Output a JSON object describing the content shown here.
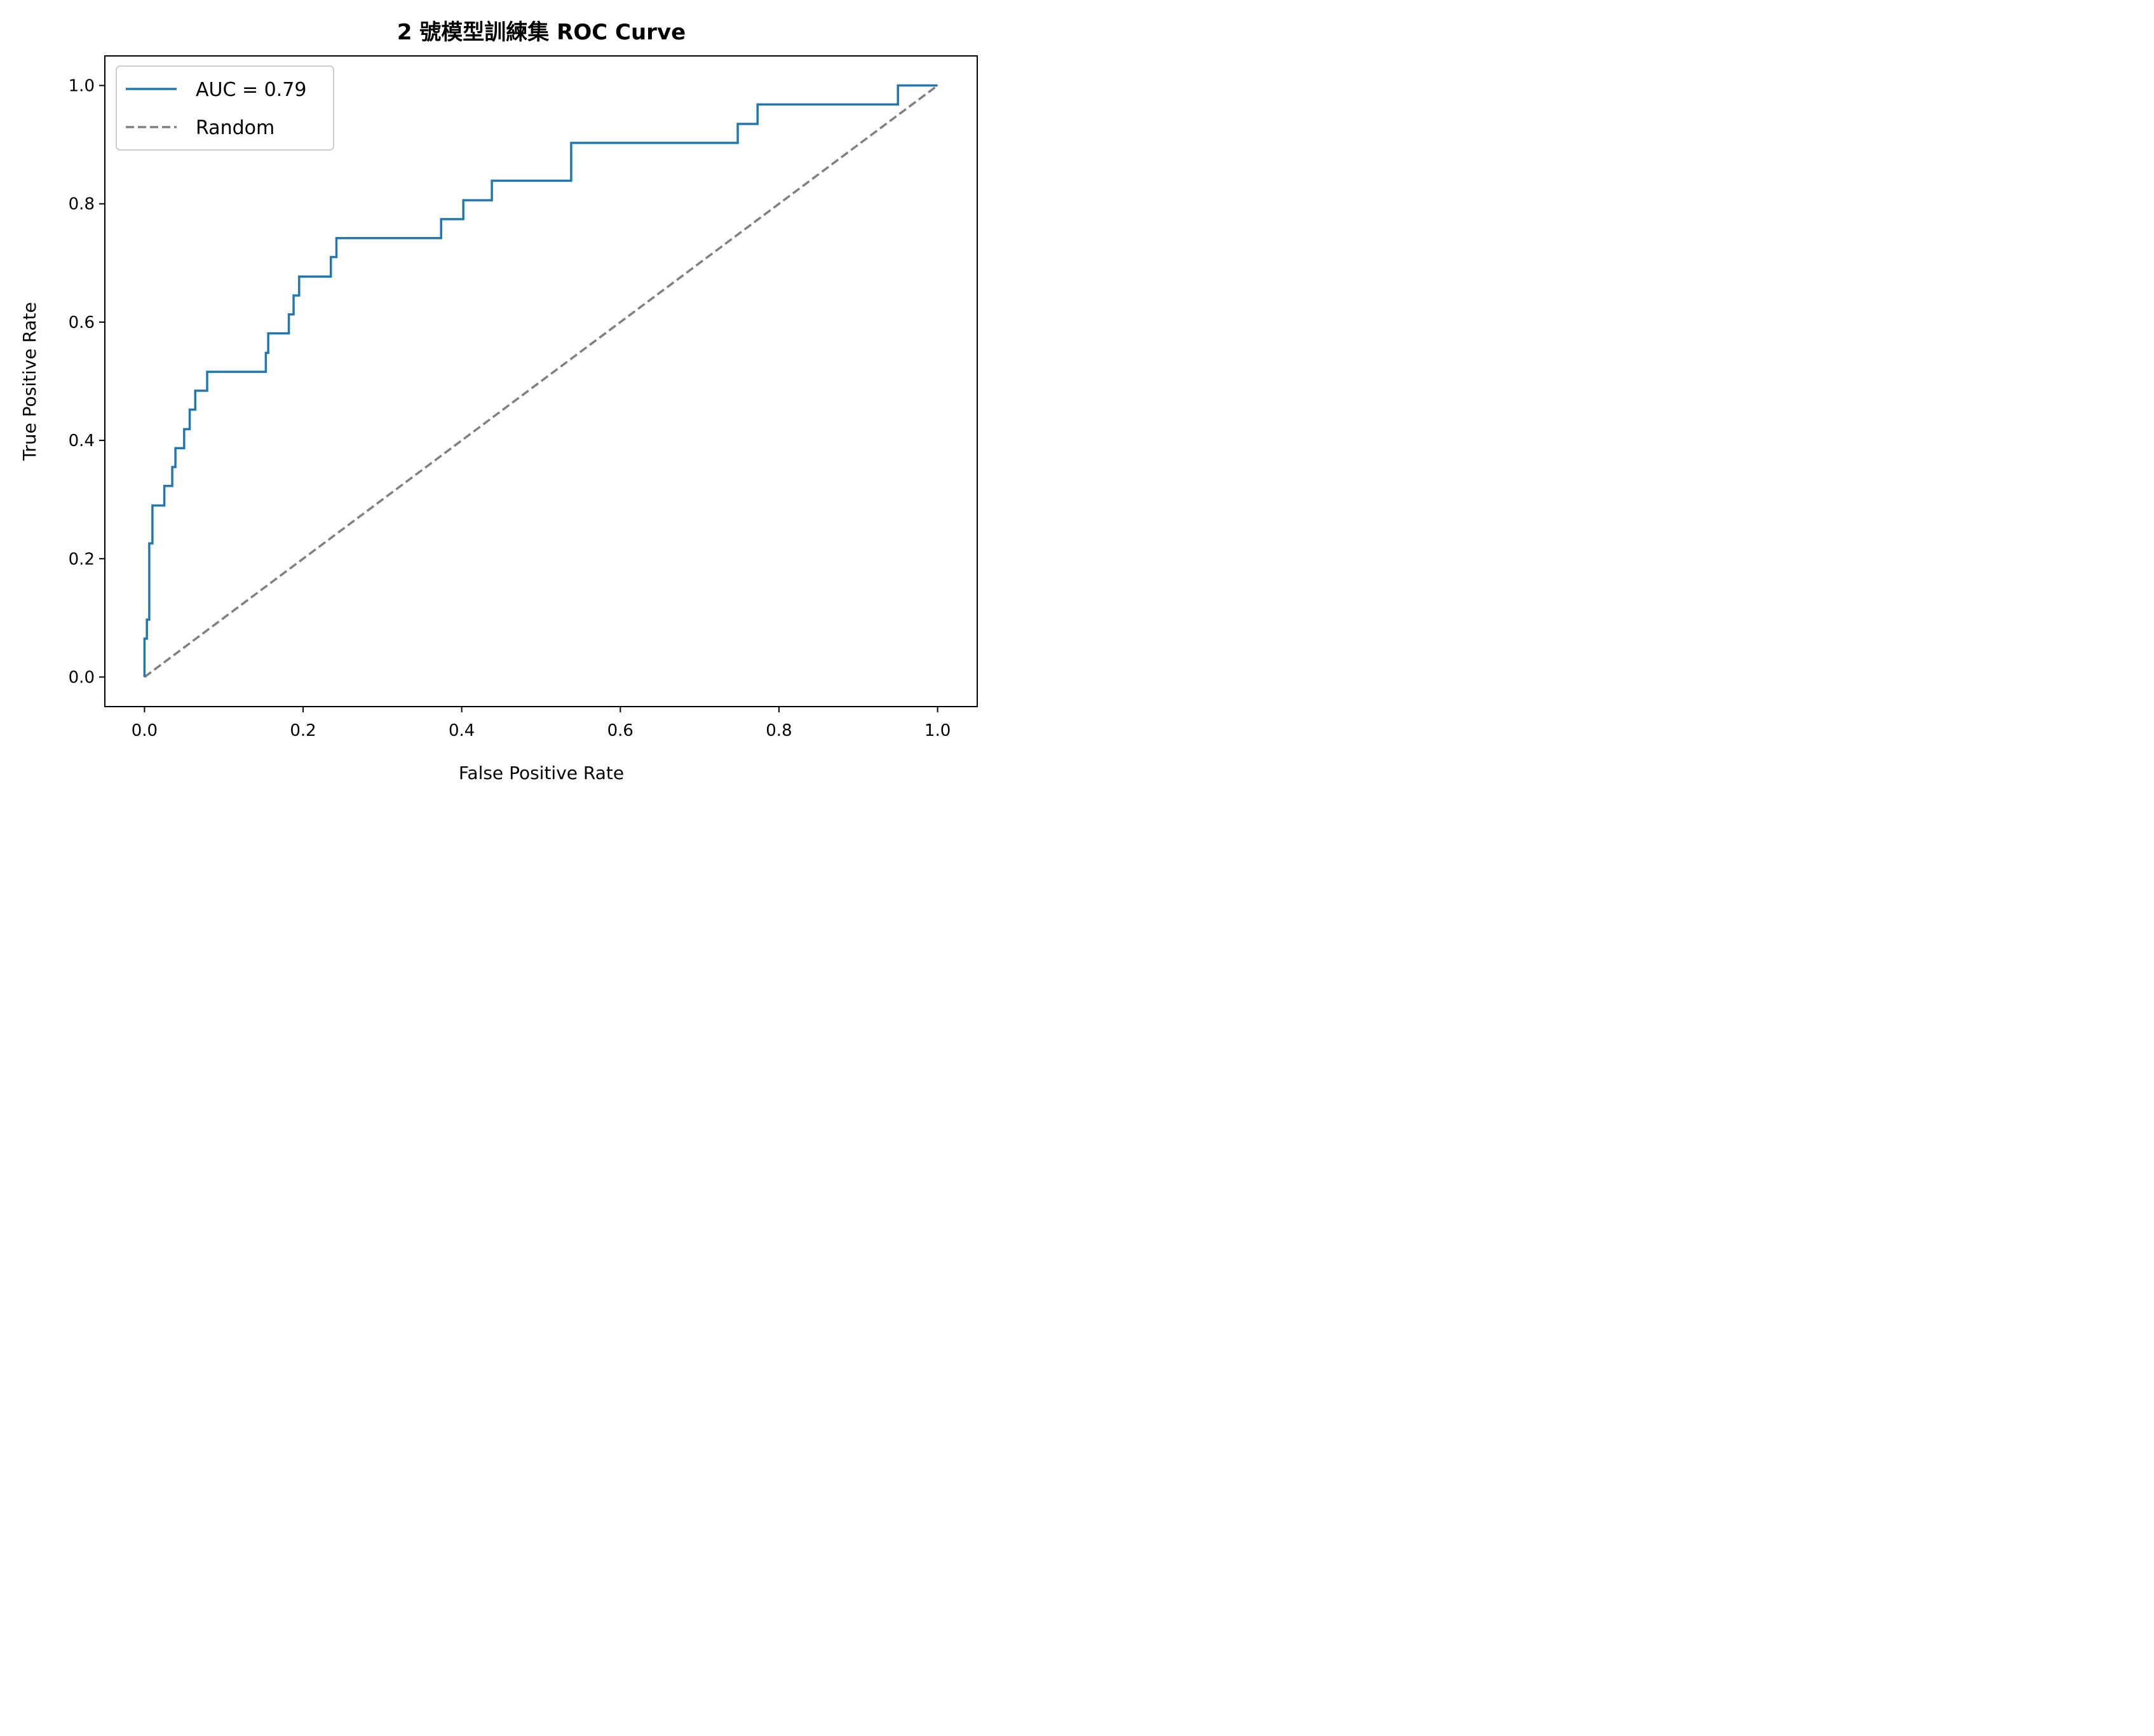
{
  "chart_data": {
    "type": "line",
    "title": "2 號模型訓練集 ROC Curve",
    "xlabel": "False Positive Rate",
    "ylabel": "True Positive Rate",
    "xlim": [
      -0.05,
      1.05
    ],
    "ylim": [
      -0.05,
      1.05
    ],
    "x_ticks": [
      0.0,
      0.2,
      0.4,
      0.6,
      0.8,
      1.0
    ],
    "x_tick_labels": [
      "0.0",
      "0.2",
      "0.4",
      "0.6",
      "0.8",
      "1.0"
    ],
    "y_ticks": [
      0.0,
      0.2,
      0.4,
      0.6,
      0.8,
      1.0
    ],
    "y_tick_labels": [
      "0.0",
      "0.2",
      "0.4",
      "0.6",
      "0.8",
      "1.0"
    ],
    "grid": false,
    "legend_position": "upper left",
    "series": [
      {
        "name": "AUC = 0.79",
        "color": "#1f77b4",
        "style": "solid",
        "x": [
          0.0,
          0.0,
          0.003,
          0.003,
          0.006,
          0.006,
          0.01,
          0.01,
          0.025,
          0.025,
          0.035,
          0.035,
          0.039,
          0.039,
          0.05,
          0.05,
          0.057,
          0.057,
          0.064,
          0.064,
          0.079,
          0.079,
          0.153,
          0.153,
          0.156,
          0.156,
          0.182,
          0.182,
          0.188,
          0.188,
          0.195,
          0.195,
          0.235,
          0.235,
          0.242,
          0.242,
          0.374,
          0.374,
          0.402,
          0.402,
          0.438,
          0.438,
          0.538,
          0.538,
          0.748,
          0.748,
          0.773,
          0.773,
          0.95,
          0.95,
          1.0
        ],
        "y": [
          0.0,
          0.065,
          0.065,
          0.097,
          0.097,
          0.226,
          0.226,
          0.29,
          0.29,
          0.323,
          0.323,
          0.355,
          0.355,
          0.387,
          0.387,
          0.419,
          0.419,
          0.452,
          0.452,
          0.484,
          0.484,
          0.516,
          0.516,
          0.548,
          0.548,
          0.581,
          0.581,
          0.613,
          0.613,
          0.645,
          0.645,
          0.677,
          0.677,
          0.71,
          0.71,
          0.742,
          0.742,
          0.774,
          0.774,
          0.806,
          0.806,
          0.839,
          0.839,
          0.903,
          0.903,
          0.935,
          0.935,
          0.968,
          0.968,
          1.0,
          1.0
        ]
      },
      {
        "name": "Random",
        "color": "#808080",
        "style": "dashed",
        "x": [
          0.0,
          1.0
        ],
        "y": [
          0.0,
          1.0
        ]
      }
    ]
  }
}
